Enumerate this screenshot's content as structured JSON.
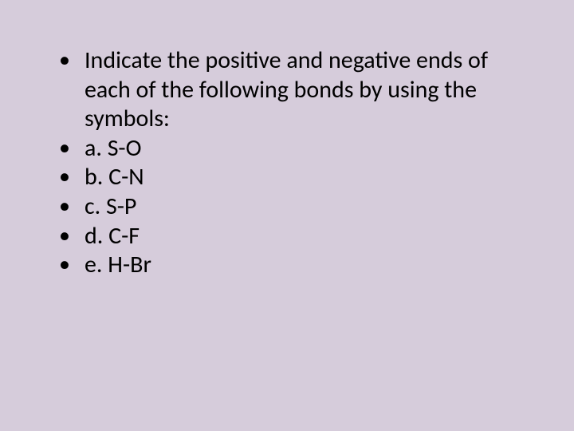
{
  "slide": {
    "background_color": "#d6ccdb",
    "text_color": "#000000",
    "font_family": "Calibri",
    "font_size_pt": 30,
    "bullet_char": "•",
    "items": [
      {
        "text": "Indicate the positive and negative ends of each of the following bonds by using the symbols:"
      },
      {
        "text": "a. S-O"
      },
      {
        "text": "b. C-N"
      },
      {
        "text": "c.  S-P"
      },
      {
        "text": "d. C-F"
      },
      {
        "text": "e. H-Br"
      }
    ]
  }
}
